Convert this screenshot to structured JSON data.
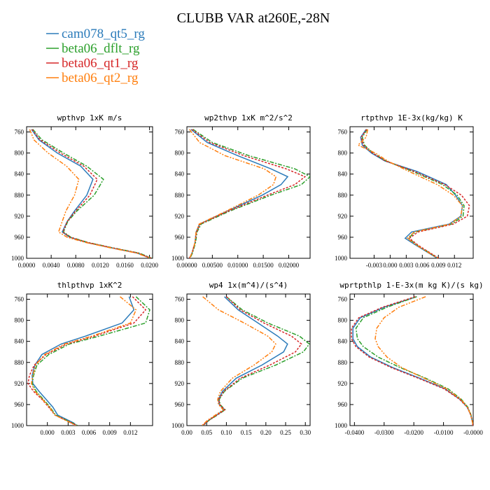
{
  "figure": {
    "title": "CLUBB VAR at260E,-28N"
  },
  "legend": [
    {
      "name": "cam078_qt5_rg",
      "color": "#2b7bba"
    },
    {
      "name": "beta06_dflt_rg",
      "color": "#2ca02c"
    },
    {
      "name": "beta06_qt1_rg",
      "color": "#d62728"
    },
    {
      "name": "beta06_qt2_rg",
      "color": "#ff7f0e"
    }
  ],
  "chart_data": [
    {
      "type": "line",
      "title": "wpthvp  1xK m/s",
      "ylim": [
        1000,
        750
      ],
      "yticks": [
        760,
        800,
        840,
        880,
        920,
        960,
        1000
      ],
      "xlim": [
        0,
        0.0205
      ],
      "xticks": [
        0,
        0.004,
        0.008,
        0.012,
        0.016,
        0.02
      ],
      "xticklabels": [
        "0.0000",
        "0.0040",
        "0.0080",
        "0.0120",
        "0.0160",
        "0.0200"
      ],
      "y": [
        755,
        775,
        800,
        825,
        850,
        880,
        910,
        930,
        950,
        960,
        970,
        980,
        990,
        1000
      ],
      "series": [
        {
          "name": "cam078_qt5_rg",
          "values": [
            0.0008,
            0.002,
            0.005,
            0.0088,
            0.0108,
            0.0098,
            0.0078,
            0.0066,
            0.0058,
            0.007,
            0.0098,
            0.0138,
            0.018,
            0.0202
          ]
        },
        {
          "name": "beta06_dflt_rg",
          "values": [
            0.001,
            0.0025,
            0.006,
            0.0098,
            0.0125,
            0.011,
            0.0082,
            0.0067,
            0.006,
            0.0072,
            0.01,
            0.014,
            0.0183,
            0.0204
          ]
        },
        {
          "name": "beta06_qt1_rg",
          "values": [
            0.0009,
            0.0022,
            0.0055,
            0.0093,
            0.0115,
            0.0103,
            0.008,
            0.0066,
            0.0059,
            0.0071,
            0.0099,
            0.0139,
            0.0181,
            0.0203
          ]
        },
        {
          "name": "beta06_qt2_rg",
          "values": [
            0.0005,
            0.0012,
            0.0035,
            0.0065,
            0.0085,
            0.0078,
            0.0064,
            0.0058,
            0.0052,
            0.0066,
            0.0096,
            0.0136,
            0.0179,
            0.0201
          ]
        }
      ]
    },
    {
      "type": "line",
      "title": "wp2thvp  1xK m^2/s^2",
      "ylim": [
        1000,
        750
      ],
      "yticks": [
        760,
        800,
        840,
        880,
        920,
        960,
        1000
      ],
      "xlim": [
        0,
        0.0242
      ],
      "xticks": [
        0,
        0.005,
        0.01,
        0.015,
        0.02
      ],
      "xticklabels": [
        "0.00000",
        "0.00500",
        "0.01000",
        "0.01500",
        "0.02000"
      ],
      "y": [
        755,
        780,
        805,
        830,
        845,
        860,
        880,
        910,
        935,
        950,
        970,
        990,
        1000
      ],
      "series": [
        {
          "name": "cam078_qt5_rg",
          "values": [
            0.0008,
            0.004,
            0.01,
            0.0165,
            0.0198,
            0.0185,
            0.0148,
            0.008,
            0.0025,
            0.0018,
            0.0016,
            0.001,
            0.0005
          ]
        },
        {
          "name": "beta06_dflt_rg",
          "values": [
            0.0012,
            0.005,
            0.0122,
            0.0212,
            0.0242,
            0.0225,
            0.0165,
            0.0085,
            0.0028,
            0.002,
            0.0017,
            0.0011,
            0.0006
          ]
        },
        {
          "name": "beta06_qt1_rg",
          "values": [
            0.001,
            0.0045,
            0.0112,
            0.0195,
            0.0232,
            0.0212,
            0.0158,
            0.0082,
            0.0026,
            0.0019,
            0.0016,
            0.001,
            0.0005
          ]
        },
        {
          "name": "beta06_qt2_rg",
          "values": [
            0.0005,
            0.0025,
            0.0075,
            0.0152,
            0.0175,
            0.017,
            0.014,
            0.0078,
            0.0024,
            0.0018,
            0.0016,
            0.001,
            0.0005
          ]
        }
      ]
    },
    {
      "type": "line",
      "title": "rtpthvp  1E-3x(kg/kg) K",
      "ylim": [
        1000,
        750
      ],
      "yticks": [
        760,
        800,
        840,
        880,
        920,
        960,
        1000
      ],
      "xlim": [
        -0.0075,
        0.0155
      ],
      "xticks": [
        -0.003,
        0,
        0.003,
        0.006,
        0.009,
        0.012
      ],
      "xticklabels": [
        "-0.003",
        "0.000",
        "0.003",
        "0.006",
        "0.009",
        "0.012"
      ],
      "y": [
        755,
        770,
        785,
        800,
        815,
        835,
        860,
        880,
        900,
        920,
        935,
        950,
        962,
        975,
        990,
        1000
      ],
      "series": [
        {
          "name": "cam078_qt5_rg",
          "values": [
            -0.0045,
            -0.0055,
            -0.0052,
            -0.0035,
            -0.001,
            0.005,
            0.0105,
            0.0122,
            0.0135,
            0.0132,
            0.011,
            0.004,
            0.0028,
            0.0048,
            0.0072,
            0.0088
          ]
        },
        {
          "name": "beta06_dflt_rg",
          "values": [
            -0.0043,
            -0.0052,
            -0.0048,
            -0.0032,
            -0.0008,
            0.0042,
            0.0098,
            0.0125,
            0.0138,
            0.0136,
            0.0115,
            0.0047,
            0.0034,
            0.005,
            0.0074,
            0.009
          ]
        },
        {
          "name": "beta06_qt1_rg",
          "values": [
            -0.0044,
            -0.0054,
            -0.005,
            -0.0033,
            -0.0009,
            0.0045,
            0.0102,
            0.0133,
            0.0148,
            0.0144,
            0.0118,
            0.0052,
            0.0036,
            0.0052,
            0.0075,
            0.0091
          ]
        },
        {
          "name": "beta06_qt2_rg",
          "values": [
            -0.0042,
            -0.0045,
            -0.006,
            -0.0028,
            -0.0005,
            0.0035,
            0.0088,
            0.0118,
            0.0135,
            0.0132,
            0.0112,
            0.0045,
            0.0032,
            0.0049,
            0.0073,
            0.0089
          ]
        }
      ]
    },
    {
      "type": "line",
      "title": "thlpthvp  1xK^2",
      "ylim": [
        1000,
        750
      ],
      "yticks": [
        760,
        800,
        840,
        880,
        920,
        960,
        1000
      ],
      "xlim": [
        -0.003,
        0.0152
      ],
      "xticks": [
        0,
        0.003,
        0.006,
        0.009,
        0.012
      ],
      "xticklabels": [
        "0.000",
        "0.003",
        "0.006",
        "0.009",
        "0.012"
      ],
      "y": [
        755,
        780,
        805,
        830,
        845,
        865,
        885,
        905,
        920,
        935,
        950,
        965,
        980,
        995,
        1000
      ],
      "series": [
        {
          "name": "cam078_qt5_rg",
          "values": [
            0.0118,
            0.0125,
            0.0108,
            0.0055,
            0.002,
            -0.0008,
            -0.0018,
            -0.0022,
            -0.0021,
            -0.0012,
            -0.0002,
            0.0008,
            0.0015,
            0.0038,
            0.0042
          ]
        },
        {
          "name": "beta06_dflt_rg",
          "values": [
            0.0128,
            0.0148,
            0.0142,
            0.0075,
            0.0032,
            0.0002,
            -0.0015,
            -0.002,
            -0.0022,
            -0.0016,
            -0.0006,
            0.0004,
            0.0012,
            0.0036,
            0.0044
          ]
        },
        {
          "name": "beta06_qt1_rg",
          "values": [
            0.0123,
            0.0142,
            0.0125,
            0.0068,
            0.0028,
            -0.0002,
            -0.0019,
            -0.0026,
            -0.0028,
            -0.002,
            -0.0008,
            0.0002,
            0.0011,
            0.0035,
            0.0043
          ]
        },
        {
          "name": "beta06_qt2_rg",
          "values": [
            0.0105,
            0.0128,
            0.012,
            0.0064,
            0.0025,
            -0.0004,
            -0.0017,
            -0.0021,
            -0.0023,
            -0.0018,
            -0.0007,
            0.0003,
            0.0011,
            0.0034,
            0.0041
          ]
        }
      ]
    },
    {
      "type": "line",
      "title": "wp4  1x(m^4)/(s^4)",
      "ylim": [
        1000,
        750
      ],
      "yticks": [
        760,
        800,
        840,
        880,
        920,
        960,
        1000
      ],
      "xlim": [
        0,
        0.312
      ],
      "xticks": [
        0,
        0.05,
        0.1,
        0.15,
        0.2,
        0.25,
        0.3
      ],
      "xticklabels": [
        "0.00",
        "0.05",
        "0.10",
        "0.15",
        "0.20",
        "0.25",
        "0.30"
      ],
      "y": [
        755,
        780,
        805,
        830,
        845,
        860,
        885,
        910,
        935,
        950,
        960,
        970,
        980,
        990,
        1000
      ],
      "series": [
        {
          "name": "cam078_qt5_rg",
          "values": [
            0.095,
            0.13,
            0.18,
            0.23,
            0.255,
            0.245,
            0.19,
            0.125,
            0.09,
            0.08,
            0.082,
            0.095,
            0.075,
            0.055,
            0.04
          ]
        },
        {
          "name": "beta06_dflt_rg",
          "values": [
            0.1,
            0.14,
            0.205,
            0.285,
            0.31,
            0.295,
            0.225,
            0.14,
            0.095,
            0.082,
            0.084,
            0.097,
            0.077,
            0.056,
            0.041
          ]
        },
        {
          "name": "beta06_qt1_rg",
          "values": [
            0.1,
            0.135,
            0.195,
            0.265,
            0.29,
            0.275,
            0.21,
            0.135,
            0.093,
            0.081,
            0.083,
            0.096,
            0.076,
            0.055,
            0.04
          ]
        },
        {
          "name": "beta06_qt2_rg",
          "values": [
            0.04,
            0.08,
            0.145,
            0.205,
            0.225,
            0.215,
            0.17,
            0.115,
            0.085,
            0.078,
            0.08,
            0.092,
            0.072,
            0.052,
            0.038
          ]
        }
      ]
    },
    {
      "type": "line",
      "title": "wprtpthlp  1-E-3x(m kg K)/(s kg)",
      "ylim": [
        1000,
        750
      ],
      "yticks": [
        760,
        800,
        840,
        880,
        920,
        960,
        1000
      ],
      "xlim": [
        -0.0415,
        0
      ],
      "xticks": [
        -0.04,
        -0.03,
        -0.02,
        -0.01,
        0
      ],
      "xticklabels": [
        "-0.0400",
        "-0.0300",
        "-0.0200",
        "-0.0100",
        "-0.0000"
      ],
      "y": [
        755,
        775,
        795,
        815,
        835,
        850,
        870,
        890,
        910,
        930,
        950,
        965,
        980,
        995,
        1000
      ],
      "series": [
        {
          "name": "cam078_qt5_rg",
          "values": [
            -0.019,
            -0.03,
            -0.038,
            -0.0405,
            -0.0405,
            -0.039,
            -0.0345,
            -0.027,
            -0.018,
            -0.0095,
            -0.0045,
            -0.002,
            -0.0008,
            -0.0002,
            -0.0001
          ]
        },
        {
          "name": "beta06_dflt_rg",
          "values": [
            -0.019,
            -0.029,
            -0.037,
            -0.0395,
            -0.039,
            -0.037,
            -0.032,
            -0.0245,
            -0.016,
            -0.0085,
            -0.004,
            -0.0018,
            -0.0007,
            -0.0002,
            -0.0001
          ]
        },
        {
          "name": "beta06_qt1_rg",
          "values": [
            -0.0195,
            -0.0305,
            -0.0385,
            -0.041,
            -0.041,
            -0.0395,
            -0.035,
            -0.0275,
            -0.0185,
            -0.0098,
            -0.0046,
            -0.002,
            -0.0008,
            -0.0002,
            -0.0001
          ]
        },
        {
          "name": "beta06_qt2_rg",
          "values": [
            -0.016,
            -0.025,
            -0.03,
            -0.0325,
            -0.033,
            -0.032,
            -0.029,
            -0.024,
            -0.0165,
            -0.009,
            -0.0042,
            -0.0019,
            -0.0008,
            -0.0002,
            -0.0001
          ]
        }
      ]
    }
  ]
}
